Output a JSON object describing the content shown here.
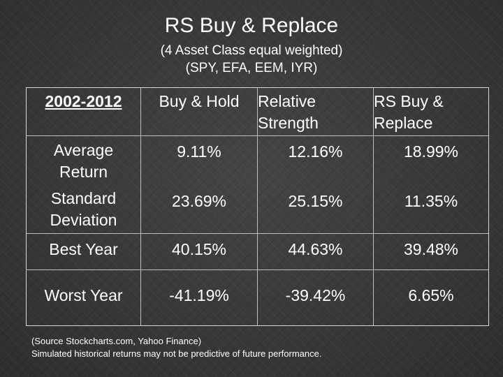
{
  "slide": {
    "title": "RS Buy & Replace",
    "subtitle_lines": [
      "(4 Asset Class equal weighted)",
      "(SPY, EFA, EEM, IYR)"
    ]
  },
  "table": {
    "headers": {
      "period": "2002-2012",
      "buy_hold": "Buy & Hold",
      "rel_strength_lines": [
        "Relative",
        "Strength"
      ],
      "rs_replace_lines": [
        "RS Buy &",
        "Replace"
      ]
    },
    "rows": [
      {
        "label_lines": [
          "Average",
          "Return"
        ],
        "values": [
          "9.11%",
          "12.16%",
          "18.99%"
        ]
      },
      {
        "label_lines": [
          "Standard",
          "Deviation"
        ],
        "values": [
          "23.69%",
          "25.15%",
          "11.35%"
        ]
      },
      {
        "label_lines": [
          "Best Year"
        ],
        "values": [
          "40.15%",
          "44.63%",
          "39.48%"
        ]
      },
      {
        "label_lines": [
          "Worst Year"
        ],
        "values": [
          "-41.19%",
          "-39.42%",
          "6.65%"
        ]
      }
    ]
  },
  "footnote": {
    "lines": [
      "(Source Stockcharts.com, Yahoo Finance)",
      "Simulated historical returns may not be predictive of future performance."
    ]
  }
}
